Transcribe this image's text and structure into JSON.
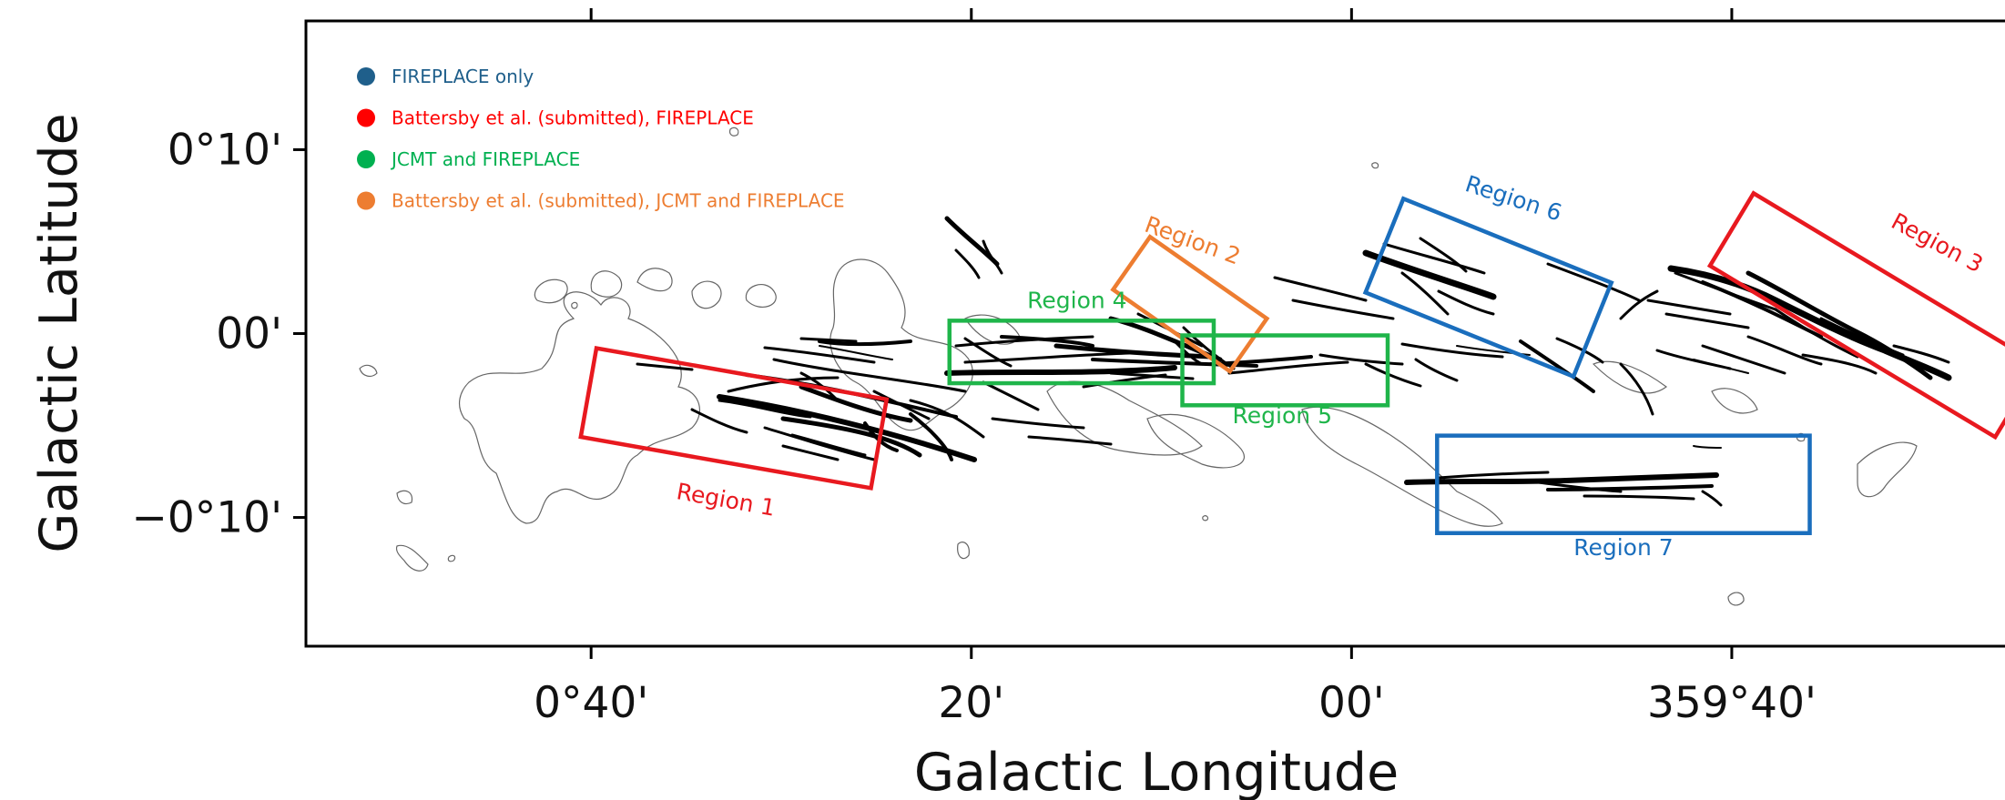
{
  "chart_data": {
    "type": "scatter",
    "xlabel": "Galactic Longitude",
    "ylabel": "Galactic Latitude",
    "x_ticks": [
      "0°40'",
      "20'",
      "00'",
      "359°40'"
    ],
    "y_ticks": [
      "0°10'",
      "00'",
      "−0°10'"
    ],
    "xlim_arcmin": [
      55,
      -36
    ],
    "ylim_arcmin": [
      -17,
      17
    ],
    "x_tick_values_arcmin": [
      40,
      20,
      0,
      -20
    ],
    "y_tick_values_arcmin": [
      10,
      0,
      -10
    ],
    "grid": false,
    "legend_position": "top-left",
    "legend": [
      {
        "label": "FIREPLACE only",
        "color": "#1f5f8b"
      },
      {
        "label": "Battersby et al. (submitted), FIREPLACE",
        "color": "#ff0000"
      },
      {
        "label": "JCMT and FIREPLACE",
        "color": "#00b050"
      },
      {
        "label": "Battersby et al. (submitted), JCMT and FIREPLACE",
        "color": "#ed7d31"
      }
    ],
    "regions": [
      {
        "name": "Region 1",
        "color": "#e8191f",
        "l_center": 32.5,
        "b_center": -4.6,
        "l_width": 15.5,
        "b_height": 4.9,
        "angle_deg": 10
      },
      {
        "name": "Region 2",
        "color": "#ed7d31",
        "l_center": 8.5,
        "b_center": 1.6,
        "l_width": 7.5,
        "b_height": 3.5,
        "angle_deg": 35
      },
      {
        "name": "Region 3",
        "color": "#e8191f",
        "l_center": -27.5,
        "b_center": 1.0,
        "l_width": 17.5,
        "b_height": 4.6,
        "angle_deg": 31
      },
      {
        "name": "Region 4",
        "color": "#1fb54a",
        "l_center": 14.2,
        "b_center": -1.0,
        "l_width": 13.9,
        "b_height": 3.4,
        "angle_deg": 0
      },
      {
        "name": "Region 5",
        "color": "#1fb54a",
        "l_center": 3.5,
        "b_center": -2.0,
        "l_width": 10.8,
        "b_height": 3.8,
        "angle_deg": 0
      },
      {
        "name": "Region 6",
        "color": "#1a6ebd",
        "l_center": -7.2,
        "b_center": 2.5,
        "l_width": 11.8,
        "b_height": 5.5,
        "angle_deg": 22
      },
      {
        "name": "Region 7",
        "color": "#1a6ebd",
        "l_center": -14.3,
        "b_center": -8.2,
        "l_width": 19.6,
        "b_height": 5.3,
        "angle_deg": 0
      }
    ]
  }
}
